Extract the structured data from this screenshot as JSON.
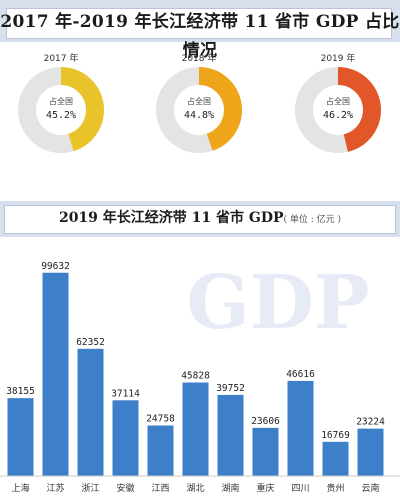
{
  "title": "2017 年-2019 年长江经济带 11 省市 GDP 占比情况",
  "donuts": [
    {
      "year": "2017 年",
      "label": "占全国",
      "value_text": "45.2%",
      "share": 45.2,
      "color": "#e8c42a"
    },
    {
      "year": "2018 年",
      "label": "占全国",
      "value_text": "44.8%",
      "share": 44.8,
      "color": "#eea51a"
    },
    {
      "year": "2019 年",
      "label": "占全国",
      "value_text": "46.2%",
      "share": 46.2,
      "color": "#e2572a"
    }
  ],
  "chart_title": "2019 年长江经济带 11 省市 GDP",
  "chart_unit": "( 单位 : 亿元 )",
  "watermark": "GDP",
  "chart_data": {
    "type": "bar",
    "title": "2019 年长江经济带 11 省市 GDP",
    "unit": "单位：亿元",
    "categories": [
      "上海",
      "江苏",
      "浙江",
      "安徽",
      "江西",
      "湖北",
      "湖南",
      "重庆",
      "四川",
      "贵州",
      "云南"
    ],
    "values": [
      38155,
      99632,
      62352,
      37114,
      24758,
      45828,
      39752,
      23606,
      46616,
      16769,
      23224
    ],
    "ylim": [
      0,
      100000
    ],
    "grid": false,
    "bar_color": "#3d7fc9"
  }
}
